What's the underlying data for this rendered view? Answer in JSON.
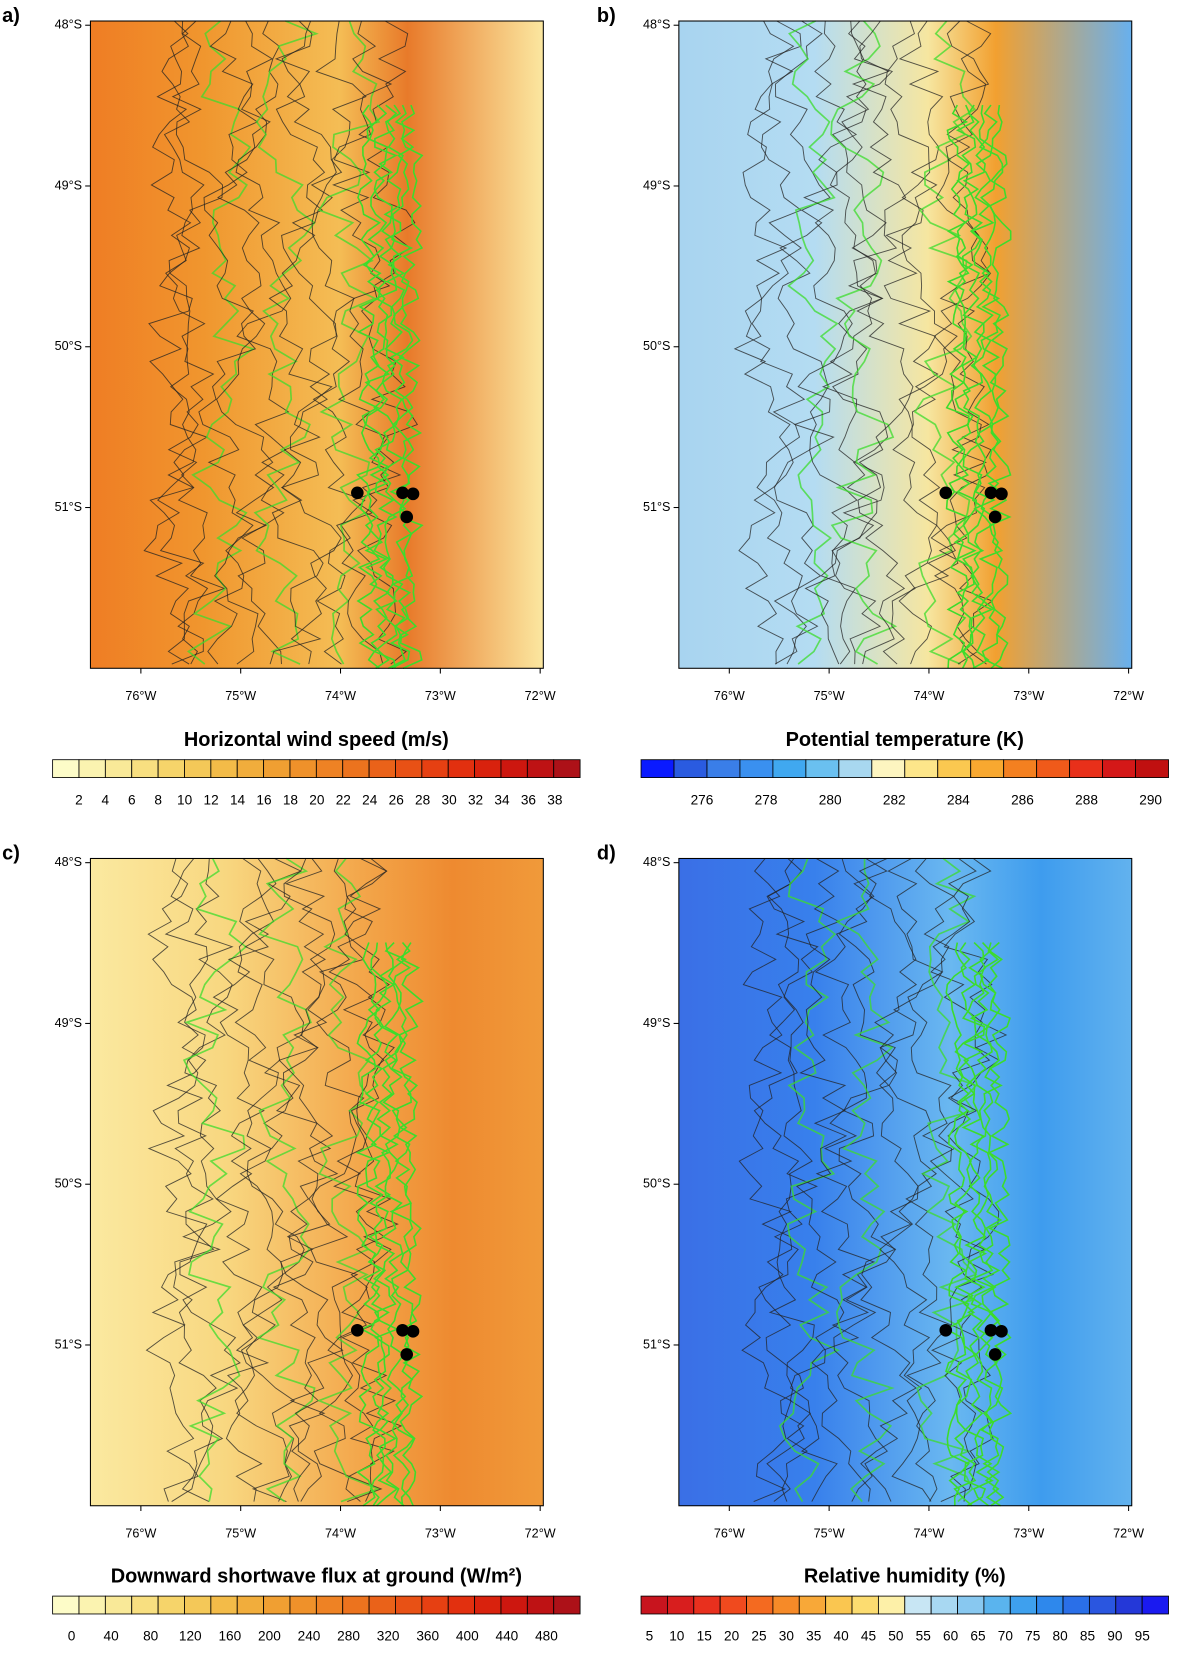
{
  "panels": [
    {
      "label": "a)",
      "colorbar": {
        "title": "Horizontal wind speed (m/s)",
        "ticks": [
          2,
          4,
          6,
          8,
          10,
          12,
          14,
          16,
          18,
          20,
          22,
          24,
          26,
          28,
          30,
          32,
          34,
          36,
          38
        ],
        "colors": [
          "#fdfcc8",
          "#fbf3b0",
          "#f9e998",
          "#f8df80",
          "#f6d46a",
          "#f4c858",
          "#f3bb48",
          "#f1ad3c",
          "#f09f32",
          "#ef912a",
          "#ee8224",
          "#ec731e",
          "#ea6219",
          "#e85115",
          "#e64012",
          "#e2300f",
          "#d9220d",
          "#cd170f",
          "#be1214",
          "#ad1118"
        ]
      }
    },
    {
      "label": "b)",
      "colorbar": {
        "title": "Potential temperature (K)",
        "ticks": [
          276,
          278,
          280,
          282,
          284,
          286,
          288,
          290
        ],
        "colors": [
          "#0a1aff",
          "#2a5be0",
          "#3a7ee8",
          "#3a90f0",
          "#40a8f0",
          "#6ac0f0",
          "#a8d8f0",
          "#fdf5c0",
          "#fde68a",
          "#fbc850",
          "#f8a830",
          "#f48020",
          "#f05a1a",
          "#e8301a",
          "#d41818",
          "#c01010"
        ]
      }
    },
    {
      "label": "c)",
      "colorbar": {
        "title": "Downward shortwave flux at ground (W/m²)",
        "ticks": [
          0,
          40,
          80,
          120,
          160,
          200,
          240,
          280,
          320,
          360,
          400,
          440,
          480
        ],
        "colors": [
          "#fdfcc8",
          "#fbf3b0",
          "#f9e998",
          "#f8df80",
          "#f6d46a",
          "#f4c858",
          "#f3bb48",
          "#f1ad3c",
          "#f09f32",
          "#ef912a",
          "#ee8224",
          "#ec731e",
          "#ea6219",
          "#e85115",
          "#e64012",
          "#e2300f",
          "#d9220d",
          "#cd170f",
          "#be1214",
          "#ad1118"
        ]
      }
    },
    {
      "label": "d)",
      "colorbar": {
        "title": "Relative humidity (%)",
        "ticks": [
          5,
          10,
          15,
          20,
          25,
          30,
          35,
          40,
          45,
          50,
          55,
          60,
          65,
          70,
          75,
          80,
          85,
          90,
          95
        ],
        "colors": [
          "#c8141e",
          "#d81e1e",
          "#e8301e",
          "#f04a1e",
          "#f46a20",
          "#f68a28",
          "#f8a838",
          "#fac650",
          "#fcdc70",
          "#fdf0a8",
          "#c8e6f4",
          "#a8d8f2",
          "#88c8f0",
          "#5ab4ee",
          "#3ea0ee",
          "#2e88ec",
          "#2a6fe8",
          "#2a56e0",
          "#2438d8",
          "#1a1af0"
        ]
      }
    }
  ],
  "lat_ticks": [
    "48°S",
    "49°S",
    "50°S",
    "51°S"
  ],
  "lon_ticks": [
    "76°W",
    "75°W",
    "74°W",
    "73°W",
    "72°W"
  ]
}
